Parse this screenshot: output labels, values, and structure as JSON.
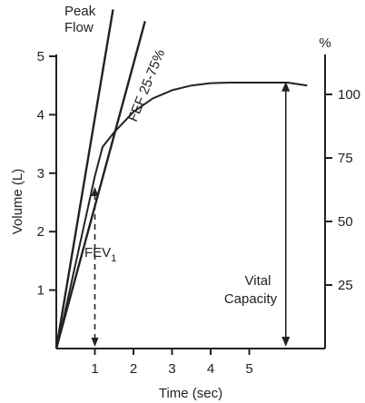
{
  "chart_data": {
    "type": "line",
    "title": "",
    "xlabel": "Time (sec)",
    "ylabel": "Volume (L)",
    "y2label": "%",
    "xlim": [
      0,
      6.5
    ],
    "ylim": [
      0,
      5
    ],
    "y2lim": [
      0,
      125
    ],
    "x_ticks": [
      1,
      2,
      3,
      4,
      5
    ],
    "y_ticks": [
      1,
      2,
      3,
      4,
      5
    ],
    "y2_ticks": [
      25,
      50,
      75,
      100
    ],
    "grid": false,
    "legend": "none",
    "series": [
      {
        "name": "",
        "kind": "curve",
        "x": [
          0,
          0.2,
          0.4,
          0.6,
          0.8,
          1.0,
          1.2,
          1.5,
          2.0,
          2.5,
          3.0,
          3.5,
          4.0,
          4.5,
          5.0,
          5.5,
          6.0,
          6.5
        ],
        "y": [
          0,
          0.55,
          1.15,
          1.75,
          2.35,
          2.95,
          3.45,
          3.7,
          4.05,
          4.28,
          4.42,
          4.5,
          4.54,
          4.55,
          4.55,
          4.55,
          4.55,
          4.5
        ]
      },
      {
        "name": "",
        "kind": "tangent",
        "x": [
          0,
          1.47
        ],
        "y": [
          0,
          5.8
        ]
      },
      {
        "name": "",
        "kind": "tangent",
        "x": [
          0,
          2.3
        ],
        "y": [
          0,
          5.6
        ]
      }
    ],
    "annotations": {
      "peak_flow_line1": "Peak",
      "peak_flow_line2": "Flow",
      "fef": "FEF 25-75%",
      "fev_text": "FEV",
      "fev_sub": "1",
      "vital_line1": "Vital",
      "vital_line2": "Capacity"
    },
    "fev1": {
      "x": 1.0,
      "y": 2.95
    },
    "vital_capacity": {
      "x": 5.9,
      "y_from": 0,
      "y_to": 4.6
    }
  }
}
